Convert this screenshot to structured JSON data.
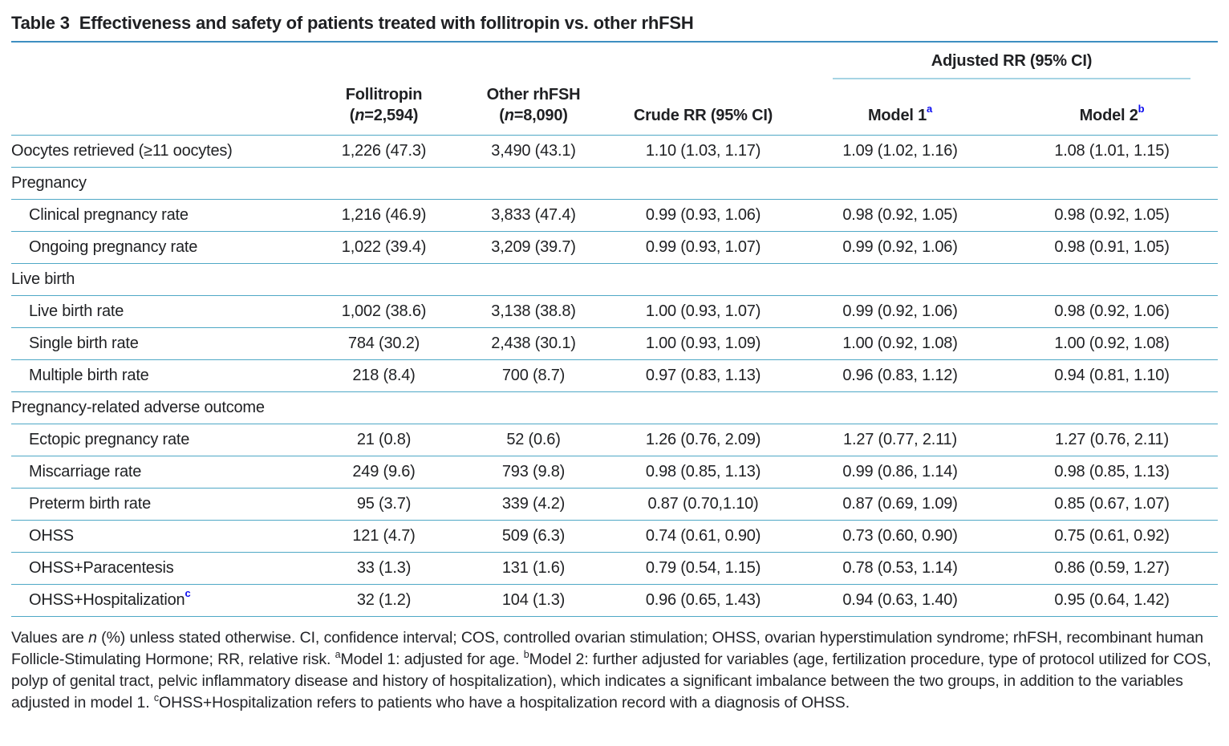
{
  "title": {
    "tag": "Table 3",
    "text": "Effectiveness and safety of patients treated with follitropin vs. other rhFSH"
  },
  "header": {
    "adjusted_group": "Adjusted RR (95% CI)",
    "col_follitropin": {
      "name": "Follitropin",
      "paren_open": "(",
      "n": "n",
      "n_rest": "=2,594)"
    },
    "col_other": {
      "name": "Other rhFSH",
      "paren_open": "(",
      "n": "n",
      "n_rest": "=8,090)"
    },
    "col_crude": "Crude RR (95% CI)",
    "col_model1": {
      "label": "Model 1",
      "sup": "a"
    },
    "col_model2": {
      "label": "Model 2",
      "sup": "b"
    }
  },
  "rows": [
    {
      "type": "data",
      "indent": false,
      "label": "Oocytes retrieved (≥11 oocytes)",
      "follitropin": "1,226 (47.3)",
      "other": "3,490 (43.1)",
      "crude": "1.10 (1.03, 1.17)",
      "model1": "1.09 (1.02, 1.16)",
      "model2": "1.08 (1.01, 1.15)"
    },
    {
      "type": "section",
      "label": "Pregnancy"
    },
    {
      "type": "data",
      "indent": true,
      "label": "Clinical pregnancy rate",
      "follitropin": "1,216 (46.9)",
      "other": "3,833 (47.4)",
      "crude": "0.99 (0.93, 1.06)",
      "model1": "0.98 (0.92, 1.05)",
      "model2": "0.98 (0.92, 1.05)"
    },
    {
      "type": "data",
      "indent": true,
      "label": "Ongoing pregnancy rate",
      "follitropin": "1,022 (39.4)",
      "other": "3,209 (39.7)",
      "crude": "0.99 (0.93, 1.07)",
      "model1": "0.99 (0.92, 1.06)",
      "model2": "0.98 (0.91, 1.05)"
    },
    {
      "type": "section",
      "label": "Live birth"
    },
    {
      "type": "data",
      "indent": true,
      "label": "Live birth rate",
      "follitropin": "1,002 (38.6)",
      "other": "3,138 (38.8)",
      "crude": "1.00 (0.93, 1.07)",
      "model1": "0.99 (0.92, 1.06)",
      "model2": "0.98 (0.92, 1.06)"
    },
    {
      "type": "data",
      "indent": true,
      "label": "Single birth rate",
      "follitropin": "784 (30.2)",
      "other": "2,438 (30.1)",
      "crude": "1.00 (0.93, 1.09)",
      "model1": "1.00 (0.92, 1.08)",
      "model2": "1.00 (0.92, 1.08)"
    },
    {
      "type": "data",
      "indent": true,
      "label": "Multiple birth rate",
      "follitropin": "218 (8.4)",
      "other": "700 (8.7)",
      "crude": "0.97 (0.83, 1.13)",
      "model1": "0.96 (0.83, 1.12)",
      "model2": "0.94 (0.81, 1.10)"
    },
    {
      "type": "section",
      "label": "Pregnancy-related adverse outcome"
    },
    {
      "type": "data",
      "indent": true,
      "label": "Ectopic pregnancy rate",
      "follitropin": "21 (0.8)",
      "other": "52 (0.6)",
      "crude": "1.26 (0.76, 2.09)",
      "model1": "1.27 (0.77, 2.11)",
      "model2": "1.27 (0.76, 2.11)"
    },
    {
      "type": "data",
      "indent": true,
      "label": "Miscarriage rate",
      "follitropin": "249 (9.6)",
      "other": "793 (9.8)",
      "crude": "0.98 (0.85, 1.13)",
      "model1": "0.99 (0.86, 1.14)",
      "model2": "0.98 (0.85, 1.13)"
    },
    {
      "type": "data",
      "indent": true,
      "label": "Preterm birth rate",
      "follitropin": "95 (3.7)",
      "other": "339 (4.2)",
      "crude": "0.87 (0.70,1.10)",
      "model1": "0.87 (0.69, 1.09)",
      "model2": "0.85 (0.67, 1.07)"
    },
    {
      "type": "data",
      "indent": true,
      "label": "OHSS",
      "follitropin": "121 (4.7)",
      "other": "509 (6.3)",
      "crude": "0.74 (0.61, 0.90)",
      "model1": "0.73 (0.60, 0.90)",
      "model2": "0.75 (0.61, 0.92)"
    },
    {
      "type": "data",
      "indent": true,
      "label": "OHSS+Paracentesis",
      "follitropin": "33 (1.3)",
      "other": "131 (1.6)",
      "crude": "0.79 (0.54, 1.15)",
      "model1": "0.78 (0.53, 1.14)",
      "model2": "0.86 (0.59, 1.27)"
    },
    {
      "type": "data",
      "indent": true,
      "label": "OHSS+Hospitalization",
      "label_sup": "c",
      "follitropin": "32 (1.2)",
      "other": "104 (1.3)",
      "crude": "0.96 (0.65, 1.43)",
      "model1": "0.94 (0.63, 1.40)",
      "model2": "0.95 (0.64, 1.42)"
    }
  ],
  "footnote": {
    "seg1": "Values are ",
    "n_italic": "n",
    "seg2": " (%) unless stated otherwise. CI, confidence interval; COS, controlled ovarian stimulation; OHSS, ovarian hyperstimulation syndrome; rhFSH, recombinant human Follicle-Stimulating Hormone; RR, relative risk. ",
    "sup_a": "a",
    "seg3": "Model 1: adjusted for age. ",
    "sup_b": "b",
    "seg4": "Model 2: further adjusted for variables (age, fertilization procedure, type of protocol utilized for COS, polyp of genital tract, pelvic inflammatory disease and history of hospitalization), which indicates a significant imbalance between the two groups, in addition to the variables adjusted in model 1. ",
    "sup_c": "c",
    "seg5": "OHSS+Hospitalization refers to patients who have a hospitalization record with a diagnosis of OHSS."
  },
  "colors": {
    "rule_title": "#3e8fc1",
    "rule_row": "#4fa8c6",
    "rule_group_light": "#a6d4e4",
    "superscript_blue": "#0d0df0",
    "text": "#1f2023"
  }
}
